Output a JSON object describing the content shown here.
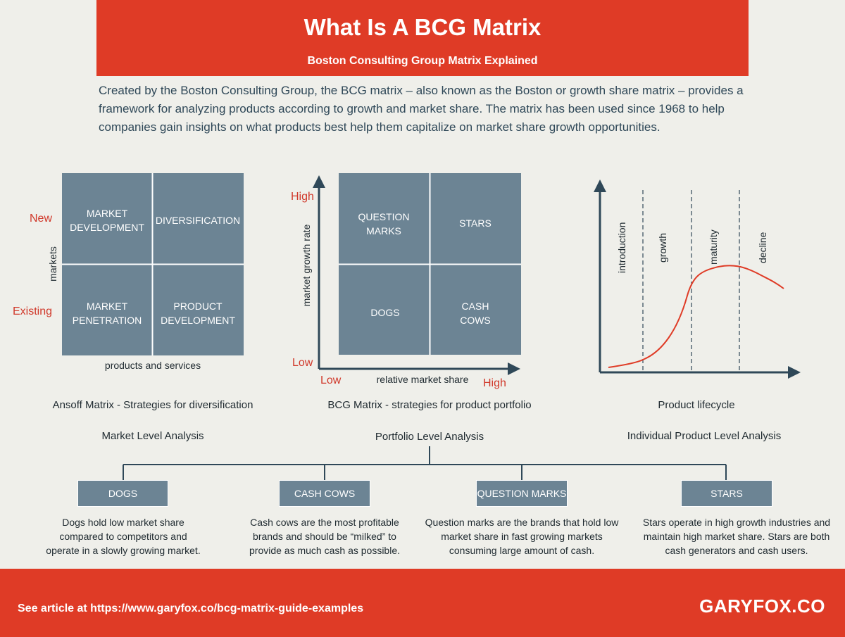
{
  "header": {
    "title": "What Is A BCG Matrix",
    "subtitle": "Boston Consulting Group Matrix Explained"
  },
  "intro": "Created by the Boston Consulting Group, the BCG matrix – also known as the Boston or growth share matrix – provides a framework for analyzing products according to growth and market share. The matrix has been used since 1968 to help companies gain insights on what products best help them capitalize on market share growth opportunities.",
  "ansoff": {
    "cells": [
      "MARKET",
      "DEVELOPMENT",
      "DIVERSIFICATION",
      "MARKET",
      "PENETRATION",
      "PRODUCT",
      "DEVELOPMENT"
    ],
    "y_label": "markets",
    "y_high": "New",
    "y_low": "Existing",
    "x_label": "products and services",
    "caption": "Ansoff Matrix - Strategies for diversification",
    "level": "Market Level Analysis"
  },
  "bcg": {
    "cells": [
      "QUESTION",
      "MARKS",
      "STARS",
      "DOGS",
      "CASH",
      "COWS"
    ],
    "y_label": "market growth rate",
    "y_high": "High",
    "y_low": "Low",
    "x_label": "relative market share",
    "x_low": "Low",
    "x_high": "High",
    "caption": "BCG Matrix - strategies for product portfolio",
    "level": "Portfolio Level Analysis"
  },
  "lifecycle": {
    "stages": [
      "introduction",
      "growth",
      "maturity",
      "decline"
    ],
    "caption": "Product lifecycle",
    "level": "Individual Product Level Analysis"
  },
  "categories": [
    {
      "label": "DOGS",
      "description": "Dogs hold low market share compared to competitors and operate in a slowly growing market."
    },
    {
      "label": "CASH COWS",
      "description": "Cash cows are the most profitable brands and should be “milked” to provide as much cash as possible."
    },
    {
      "label": "QUESTION MARKS",
      "description": "Question marks are the brands that hold low market share in fast growing markets consuming large amount of cash."
    },
    {
      "label": "STARS",
      "description": "Stars operate in high growth industries and maintain high market share. Stars are both cash generators and cash users."
    }
  ],
  "footer": {
    "link": "See article at https://www.garyfox.co/bcg-matrix-guide-examples",
    "brand": "GARYFOX.CO"
  },
  "colors": {
    "accent": "#df3b26",
    "slate": "#6c8494",
    "dark": "#2f4858",
    "background": "#efefea"
  }
}
